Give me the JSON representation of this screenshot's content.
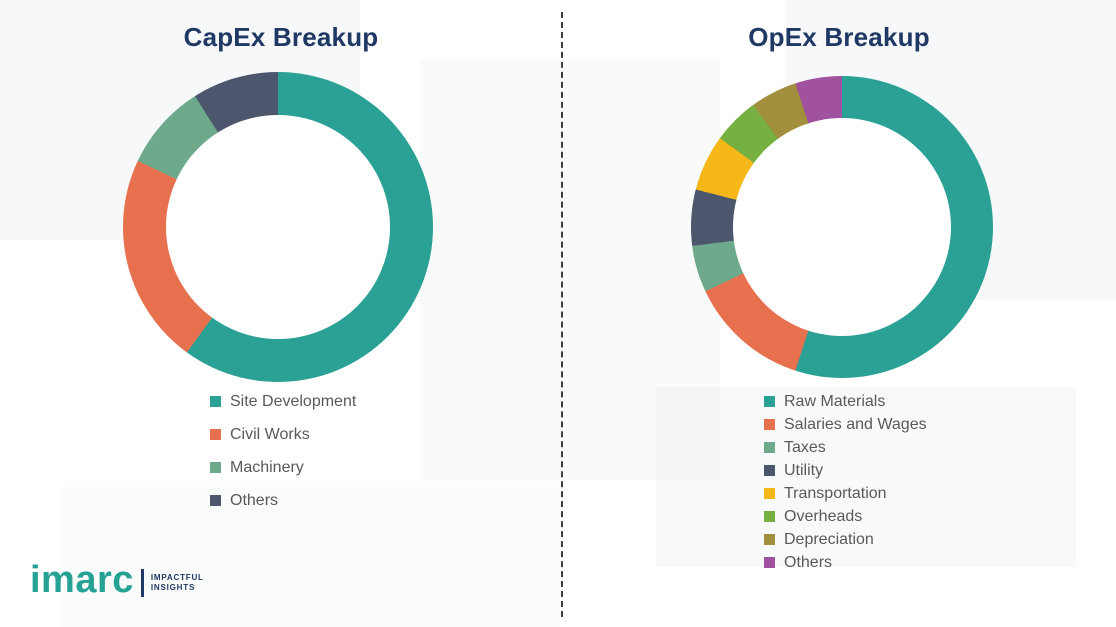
{
  "chart_data": [
    {
      "type": "pie",
      "subtype": "donut",
      "title": "CapEx Breakup",
      "labels": [
        "Site Development",
        "Civil Works",
        "Machinery",
        "Others"
      ],
      "values": [
        60,
        22,
        9,
        9
      ],
      "colors": [
        "#2aa194",
        "#e7704e",
        "#6fa98c",
        "#4c566c"
      ],
      "start_angle_deg": 0,
      "direction": "clockwise",
      "hole_ratio": 0.72,
      "legend_position": "below-left",
      "data_labels_shown": false
    },
    {
      "type": "pie",
      "subtype": "donut",
      "title": "OpEx Breakup",
      "labels": [
        "Raw Materials",
        "Salaries and Wages",
        "Taxes",
        "Utility",
        "Transportation",
        "Overheads",
        "Depreciation",
        "Others"
      ],
      "values": [
        55,
        13,
        5,
        6,
        6,
        5,
        5,
        5
      ],
      "colors": [
        "#2aa194",
        "#e7704e",
        "#6fa98c",
        "#4c566c",
        "#f6b719",
        "#76b041",
        "#a28f3e",
        "#a0529f"
      ],
      "start_angle_deg": 0,
      "direction": "clockwise",
      "hole_ratio": 0.72,
      "legend_position": "below-left",
      "data_labels_shown": false
    }
  ],
  "branding": {
    "logo_text": "imarc",
    "tagline_line1": "IMPACTFUL",
    "tagline_line2": "INSIGHTS",
    "logo_color": "#25a294",
    "title_color": "#1f3864"
  }
}
